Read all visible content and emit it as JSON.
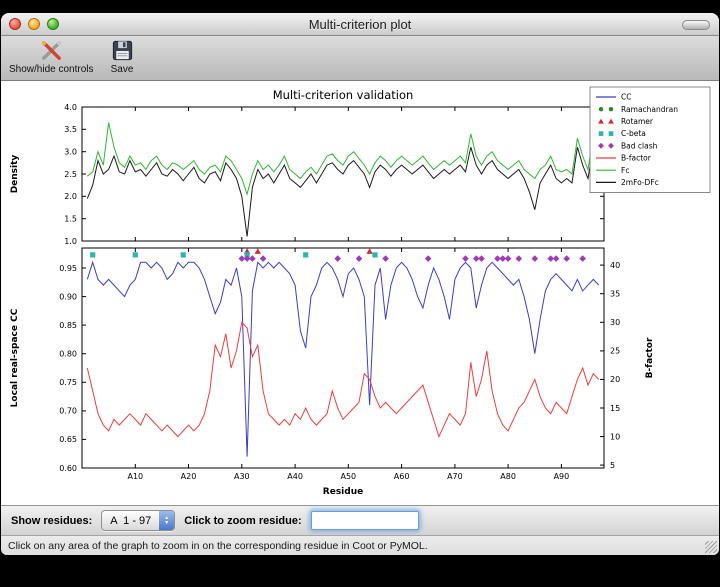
{
  "window": {
    "title": "Multi-criterion plot"
  },
  "toolbar": {
    "show_hide_label": "Show/hide controls",
    "save_label": "Save"
  },
  "controls": {
    "show_residues_label": "Show residues:",
    "range_value": "A  1 - 97",
    "zoom_label": "Click to zoom residue:",
    "zoom_value": ""
  },
  "status": {
    "message": "Click on any area of the graph to zoom in on the corresponding residue in Coot or PyMOL."
  },
  "legend": {
    "position": "upper right",
    "entries": [
      {
        "label": "CC",
        "swatch": "line",
        "color": "#3b3bd1"
      },
      {
        "label": "Ramachandran",
        "swatch": "circle",
        "color": "#1e8c1e"
      },
      {
        "label": "Rotamer",
        "swatch": "triangle",
        "color": "#d62b2b"
      },
      {
        "label": "C-beta",
        "swatch": "square",
        "color": "#2cb5ae"
      },
      {
        "label": "Bad clash",
        "swatch": "diamond",
        "color": "#a23ab8"
      },
      {
        "label": "B-factor",
        "swatch": "line",
        "color": "#f23c3c"
      },
      {
        "label": "Fc",
        "swatch": "line",
        "color": "#2eb82e"
      },
      {
        "label": "2mFo-DFc",
        "swatch": "line",
        "color": "#1a1a1a"
      }
    ]
  },
  "chart_data": [
    {
      "type": "line",
      "title": "Multi-criterion validation",
      "ylabel": "Density",
      "ylim": [
        1.0,
        4.0
      ],
      "yticks": [
        1.0,
        1.5,
        2.0,
        2.5,
        3.0,
        3.5,
        4.0
      ],
      "xlim": [
        0,
        98
      ],
      "grid": false,
      "series": [
        {
          "name": "Fc",
          "color": "#2eb82e",
          "values": [
            2.45,
            2.55,
            3.0,
            2.7,
            3.65,
            3.1,
            2.75,
            2.65,
            2.9,
            2.7,
            2.75,
            2.6,
            2.8,
            2.9,
            2.7,
            2.6,
            2.75,
            2.7,
            2.6,
            2.7,
            2.8,
            2.6,
            2.5,
            2.65,
            2.7,
            2.55,
            2.9,
            2.8,
            2.6,
            2.4,
            2.05,
            2.5,
            2.8,
            2.6,
            2.7,
            2.55,
            2.7,
            2.9,
            2.6,
            2.5,
            2.4,
            2.55,
            2.65,
            2.5,
            2.7,
            2.9,
            2.95,
            2.8,
            2.7,
            2.9,
            3.0,
            2.85,
            2.7,
            2.5,
            2.75,
            2.9,
            2.8,
            2.65,
            2.8,
            2.9,
            2.8,
            2.7,
            2.8,
            2.9,
            2.75,
            2.6,
            2.7,
            2.8,
            2.7,
            2.8,
            2.9,
            2.75,
            3.4,
            2.9,
            2.7,
            2.9,
            3.0,
            2.8,
            2.7,
            2.6,
            2.7,
            2.8,
            2.6,
            2.5,
            2.4,
            2.6,
            2.7,
            2.9,
            2.6,
            2.55,
            2.6,
            2.5,
            3.3,
            2.9,
            2.6,
            3.35,
            3.3
          ]
        },
        {
          "name": "2mFo-DFc",
          "color": "#1a1a1a",
          "values": [
            1.95,
            2.25,
            2.8,
            2.5,
            2.6,
            2.9,
            2.55,
            2.5,
            2.8,
            2.55,
            2.6,
            2.45,
            2.6,
            2.75,
            2.5,
            2.45,
            2.6,
            2.5,
            2.35,
            2.5,
            2.65,
            2.4,
            2.3,
            2.5,
            2.55,
            2.35,
            2.75,
            2.6,
            2.4,
            2.0,
            1.1,
            2.2,
            2.6,
            2.4,
            2.5,
            2.3,
            2.5,
            2.7,
            2.4,
            2.3,
            2.2,
            2.35,
            2.5,
            2.3,
            2.5,
            2.7,
            2.75,
            2.6,
            2.5,
            2.7,
            2.8,
            2.65,
            2.5,
            2.2,
            2.55,
            2.7,
            2.6,
            2.45,
            2.6,
            2.7,
            2.6,
            2.5,
            2.6,
            2.7,
            2.55,
            2.4,
            2.5,
            2.6,
            2.5,
            2.6,
            2.7,
            2.55,
            3.1,
            2.7,
            2.5,
            2.7,
            2.8,
            2.6,
            2.5,
            2.4,
            2.5,
            2.6,
            2.4,
            2.1,
            1.7,
            2.3,
            2.5,
            2.7,
            2.4,
            2.3,
            2.4,
            2.3,
            3.1,
            2.7,
            2.4,
            3.1,
            3.0
          ]
        }
      ]
    },
    {
      "type": "line+markers",
      "xlabel": "Residue",
      "ylabel": "Local real-space CC",
      "ylabel_right": "B-factor",
      "ylim_left": [
        0.6,
        0.985
      ],
      "yticks_left": [
        0.6,
        0.65,
        0.7,
        0.75,
        0.8,
        0.85,
        0.9,
        0.95
      ],
      "ylim_right": [
        4.5,
        43
      ],
      "yticks_right": [
        5,
        10,
        15,
        20,
        25,
        30,
        35,
        40
      ],
      "xlim": [
        0,
        98
      ],
      "grid": false,
      "xticks": [
        {
          "pos": 10,
          "label": "A10"
        },
        {
          "pos": 20,
          "label": "A20"
        },
        {
          "pos": 30,
          "label": "A30"
        },
        {
          "pos": 40,
          "label": "A40"
        },
        {
          "pos": 50,
          "label": "A50"
        },
        {
          "pos": 60,
          "label": "A60"
        },
        {
          "pos": 70,
          "label": "A70"
        },
        {
          "pos": 80,
          "label": "A80"
        },
        {
          "pos": 90,
          "label": "A90"
        }
      ],
      "series": [
        {
          "name": "CC",
          "axis": "left",
          "color": "#3b3bd1",
          "values": [
            0.93,
            0.96,
            0.93,
            0.92,
            0.93,
            0.92,
            0.91,
            0.9,
            0.92,
            0.93,
            0.96,
            0.96,
            0.95,
            0.96,
            0.95,
            0.93,
            0.94,
            0.96,
            0.95,
            0.96,
            0.96,
            0.95,
            0.93,
            0.9,
            0.87,
            0.89,
            0.93,
            0.92,
            0.95,
            0.9,
            0.62,
            0.91,
            0.96,
            0.95,
            0.96,
            0.95,
            0.96,
            0.95,
            0.94,
            0.92,
            0.84,
            0.81,
            0.9,
            0.92,
            0.95,
            0.96,
            0.95,
            0.93,
            0.9,
            0.94,
            0.95,
            0.93,
            0.9,
            0.71,
            0.92,
            0.95,
            0.86,
            0.92,
            0.95,
            0.96,
            0.95,
            0.93,
            0.9,
            0.88,
            0.92,
            0.95,
            0.93,
            0.9,
            0.86,
            0.93,
            0.95,
            0.96,
            0.95,
            0.88,
            0.92,
            0.95,
            0.96,
            0.95,
            0.94,
            0.93,
            0.92,
            0.93,
            0.9,
            0.86,
            0.8,
            0.86,
            0.91,
            0.93,
            0.94,
            0.93,
            0.92,
            0.91,
            0.93,
            0.91,
            0.92,
            0.93,
            0.92
          ]
        },
        {
          "name": "B-factor",
          "axis": "right",
          "color": "#f23c3c",
          "values": [
            22,
            18,
            14,
            12,
            11,
            13,
            12,
            13,
            14,
            13,
            12,
            14,
            13,
            12,
            11,
            12,
            11,
            10,
            11,
            12,
            11,
            12,
            14,
            18,
            26,
            24,
            28,
            22,
            25,
            30,
            29,
            24,
            26,
            18,
            14,
            13,
            12,
            13,
            12,
            14,
            13,
            15,
            13,
            12,
            13,
            14,
            18,
            15,
            13,
            14,
            15,
            16,
            21,
            20,
            17,
            15,
            16,
            15,
            14,
            15,
            16,
            17,
            18,
            19,
            16,
            13,
            10,
            12,
            14,
            13,
            12,
            14,
            23,
            17,
            20,
            25,
            18,
            14,
            12,
            11,
            13,
            15,
            16,
            18,
            20,
            17,
            15,
            14,
            16,
            15,
            14,
            17,
            20,
            22,
            19,
            21,
            20
          ]
        }
      ],
      "marker_series": [
        {
          "name": "Ramachandran",
          "marker": "circle",
          "color": "#1e8c1e",
          "y": 0.984,
          "residues": []
        },
        {
          "name": "Rotamer",
          "marker": "triangle",
          "color": "#d62b2b",
          "y": 0.979,
          "residues": [
            31,
            33,
            54
          ]
        },
        {
          "name": "C-beta",
          "marker": "square",
          "color": "#2cb5ae",
          "y": 0.973,
          "residues": [
            2,
            10,
            19,
            31,
            42,
            55
          ]
        },
        {
          "name": "Bad clash",
          "marker": "diamond",
          "color": "#a23ab8",
          "y": 0.9665,
          "residues": [
            30,
            31,
            32,
            34,
            48,
            52,
            57,
            65,
            72,
            74,
            75,
            78,
            79,
            80,
            82,
            85,
            88,
            89,
            91,
            94
          ]
        }
      ]
    }
  ]
}
